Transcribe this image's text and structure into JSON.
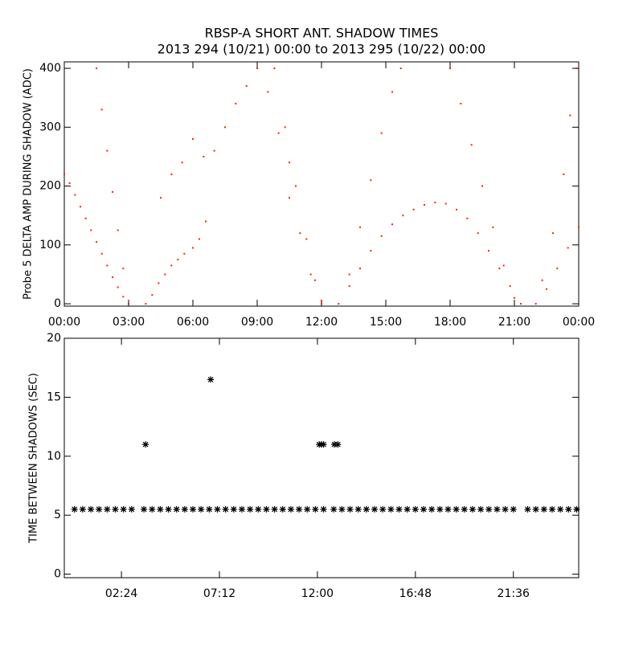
{
  "chart_data": [
    {
      "type": "scatter",
      "marker": "dot",
      "color": "#ff2000",
      "title": "RBSP-A SHORT ANT. SHADOW TIMES",
      "subtitle": "2013 294 (10/21) 00:00 to 2013 295 (10/22) 00:00",
      "y_label": "Probe 5 DELTA AMP DURING SHADOW (ADC)",
      "xlim": [
        0,
        24
      ],
      "ylim": [
        -4,
        411
      ],
      "xticks": [
        {
          "value": 0,
          "label": "00:00"
        },
        {
          "value": 3,
          "label": "03:00"
        },
        {
          "value": 6,
          "label": "06:00"
        },
        {
          "value": 9,
          "label": "09:00"
        },
        {
          "value": 12,
          "label": "12:00"
        },
        {
          "value": 15,
          "label": "15:00"
        },
        {
          "value": 18,
          "label": "18:00"
        },
        {
          "value": 21,
          "label": "21:00"
        },
        {
          "value": 24,
          "label": "00:00"
        }
      ],
      "yticks": [
        0,
        100,
        200,
        300,
        400
      ],
      "x": [
        0,
        0.25,
        0.5,
        0.75,
        1,
        1.25,
        1.5,
        1.75,
        2,
        2.25,
        2.5,
        2.75,
        3,
        1.5,
        1.75,
        2,
        2.25,
        2.5,
        2.75,
        3,
        3.8,
        4.1,
        4.4,
        4.7,
        5,
        5.3,
        5.6,
        6,
        6.3,
        6.6,
        4.5,
        5,
        5.5,
        6,
        6.5,
        7,
        7.5,
        8,
        8.5,
        9,
        9.5,
        10,
        10.5,
        9.8,
        10.3,
        10.8,
        11.3,
        11.7,
        12,
        10.5,
        11,
        11.5,
        12,
        12.8,
        13.3,
        13.8,
        14.3,
        14.8,
        15.3,
        15.8,
        16.3,
        16.8,
        17.3,
        17.8,
        18.3,
        18.8,
        19.3,
        19.8,
        20.3,
        20.8,
        21.3,
        13.3,
        13.8,
        14.3,
        14.8,
        15.3,
        15.7,
        18,
        18.5,
        19,
        19.5,
        20,
        20.5,
        21,
        22,
        22.5,
        23,
        23.5,
        24,
        22.3,
        22.8,
        23.3,
        23.6,
        23.9
      ],
      "values": [
        220,
        205,
        185,
        165,
        145,
        125,
        105,
        85,
        65,
        45,
        28,
        12,
        0,
        400,
        330,
        260,
        190,
        125,
        60,
        0,
        0,
        15,
        35,
        50,
        65,
        75,
        85,
        95,
        110,
        140,
        180,
        220,
        240,
        280,
        250,
        260,
        300,
        340,
        370,
        400,
        360,
        290,
        240,
        400,
        300,
        200,
        110,
        40,
        0,
        180,
        120,
        50,
        5,
        0,
        30,
        60,
        90,
        115,
        135,
        150,
        160,
        168,
        172,
        170,
        160,
        145,
        120,
        90,
        60,
        30,
        0,
        50,
        130,
        210,
        290,
        360,
        400,
        400,
        340,
        270,
        200,
        130,
        65,
        10,
        0,
        25,
        60,
        95,
        130,
        40,
        120,
        220,
        320,
        400
      ]
    },
    {
      "type": "scatter",
      "marker": "star",
      "color": "#000000",
      "y_label": "TIME BETWEEN SHADOWS (SEC)",
      "xlim": [
        -0.4,
        24.8
      ],
      "ylim": [
        -0.3,
        20
      ],
      "xticks": [
        {
          "value": 2.4,
          "label": "02:24"
        },
        {
          "value": 7.2,
          "label": "07:12"
        },
        {
          "value": 12,
          "label": "12:00"
        },
        {
          "value": 16.8,
          "label": "16:48"
        },
        {
          "value": 21.6,
          "label": "21:36"
        }
      ],
      "yticks": [
        0,
        5,
        10,
        15,
        20
      ],
      "x": [
        0.1,
        0.5,
        0.9,
        1.3,
        1.7,
        2.1,
        2.5,
        2.9,
        3.5,
        3.9,
        4.3,
        4.7,
        5.1,
        5.5,
        5.9,
        6.3,
        6.7,
        7.1,
        7.5,
        7.9,
        8.3,
        8.7,
        9.1,
        9.5,
        9.9,
        10.3,
        10.7,
        11.1,
        11.5,
        11.9,
        12.3,
        12.8,
        13.2,
        13.6,
        14.0,
        14.4,
        14.8,
        15.2,
        15.6,
        16.0,
        16.4,
        16.8,
        17.2,
        17.6,
        18.0,
        18.4,
        18.8,
        19.2,
        19.6,
        20.0,
        20.4,
        20.8,
        21.2,
        21.6,
        22.3,
        22.7,
        23.1,
        23.5,
        23.9,
        24.3,
        24.7,
        3.58,
        6.77,
        12.09,
        12.2,
        12.3,
        12.83,
        13.0
      ],
      "values": [
        5.5,
        5.5,
        5.5,
        5.5,
        5.5,
        5.5,
        5.5,
        5.5,
        5.5,
        5.5,
        5.5,
        5.5,
        5.5,
        5.5,
        5.5,
        5.5,
        5.5,
        5.5,
        5.5,
        5.5,
        5.5,
        5.5,
        5.5,
        5.5,
        5.5,
        5.5,
        5.5,
        5.5,
        5.5,
        5.5,
        5.5,
        5.5,
        5.5,
        5.5,
        5.5,
        5.5,
        5.5,
        5.5,
        5.5,
        5.5,
        5.5,
        5.5,
        5.5,
        5.5,
        5.5,
        5.5,
        5.5,
        5.5,
        5.5,
        5.5,
        5.5,
        5.5,
        5.5,
        5.5,
        5.5,
        5.5,
        5.5,
        5.5,
        5.5,
        5.5,
        5.5,
        11,
        16.5,
        11,
        11,
        11,
        11,
        11
      ]
    }
  ]
}
